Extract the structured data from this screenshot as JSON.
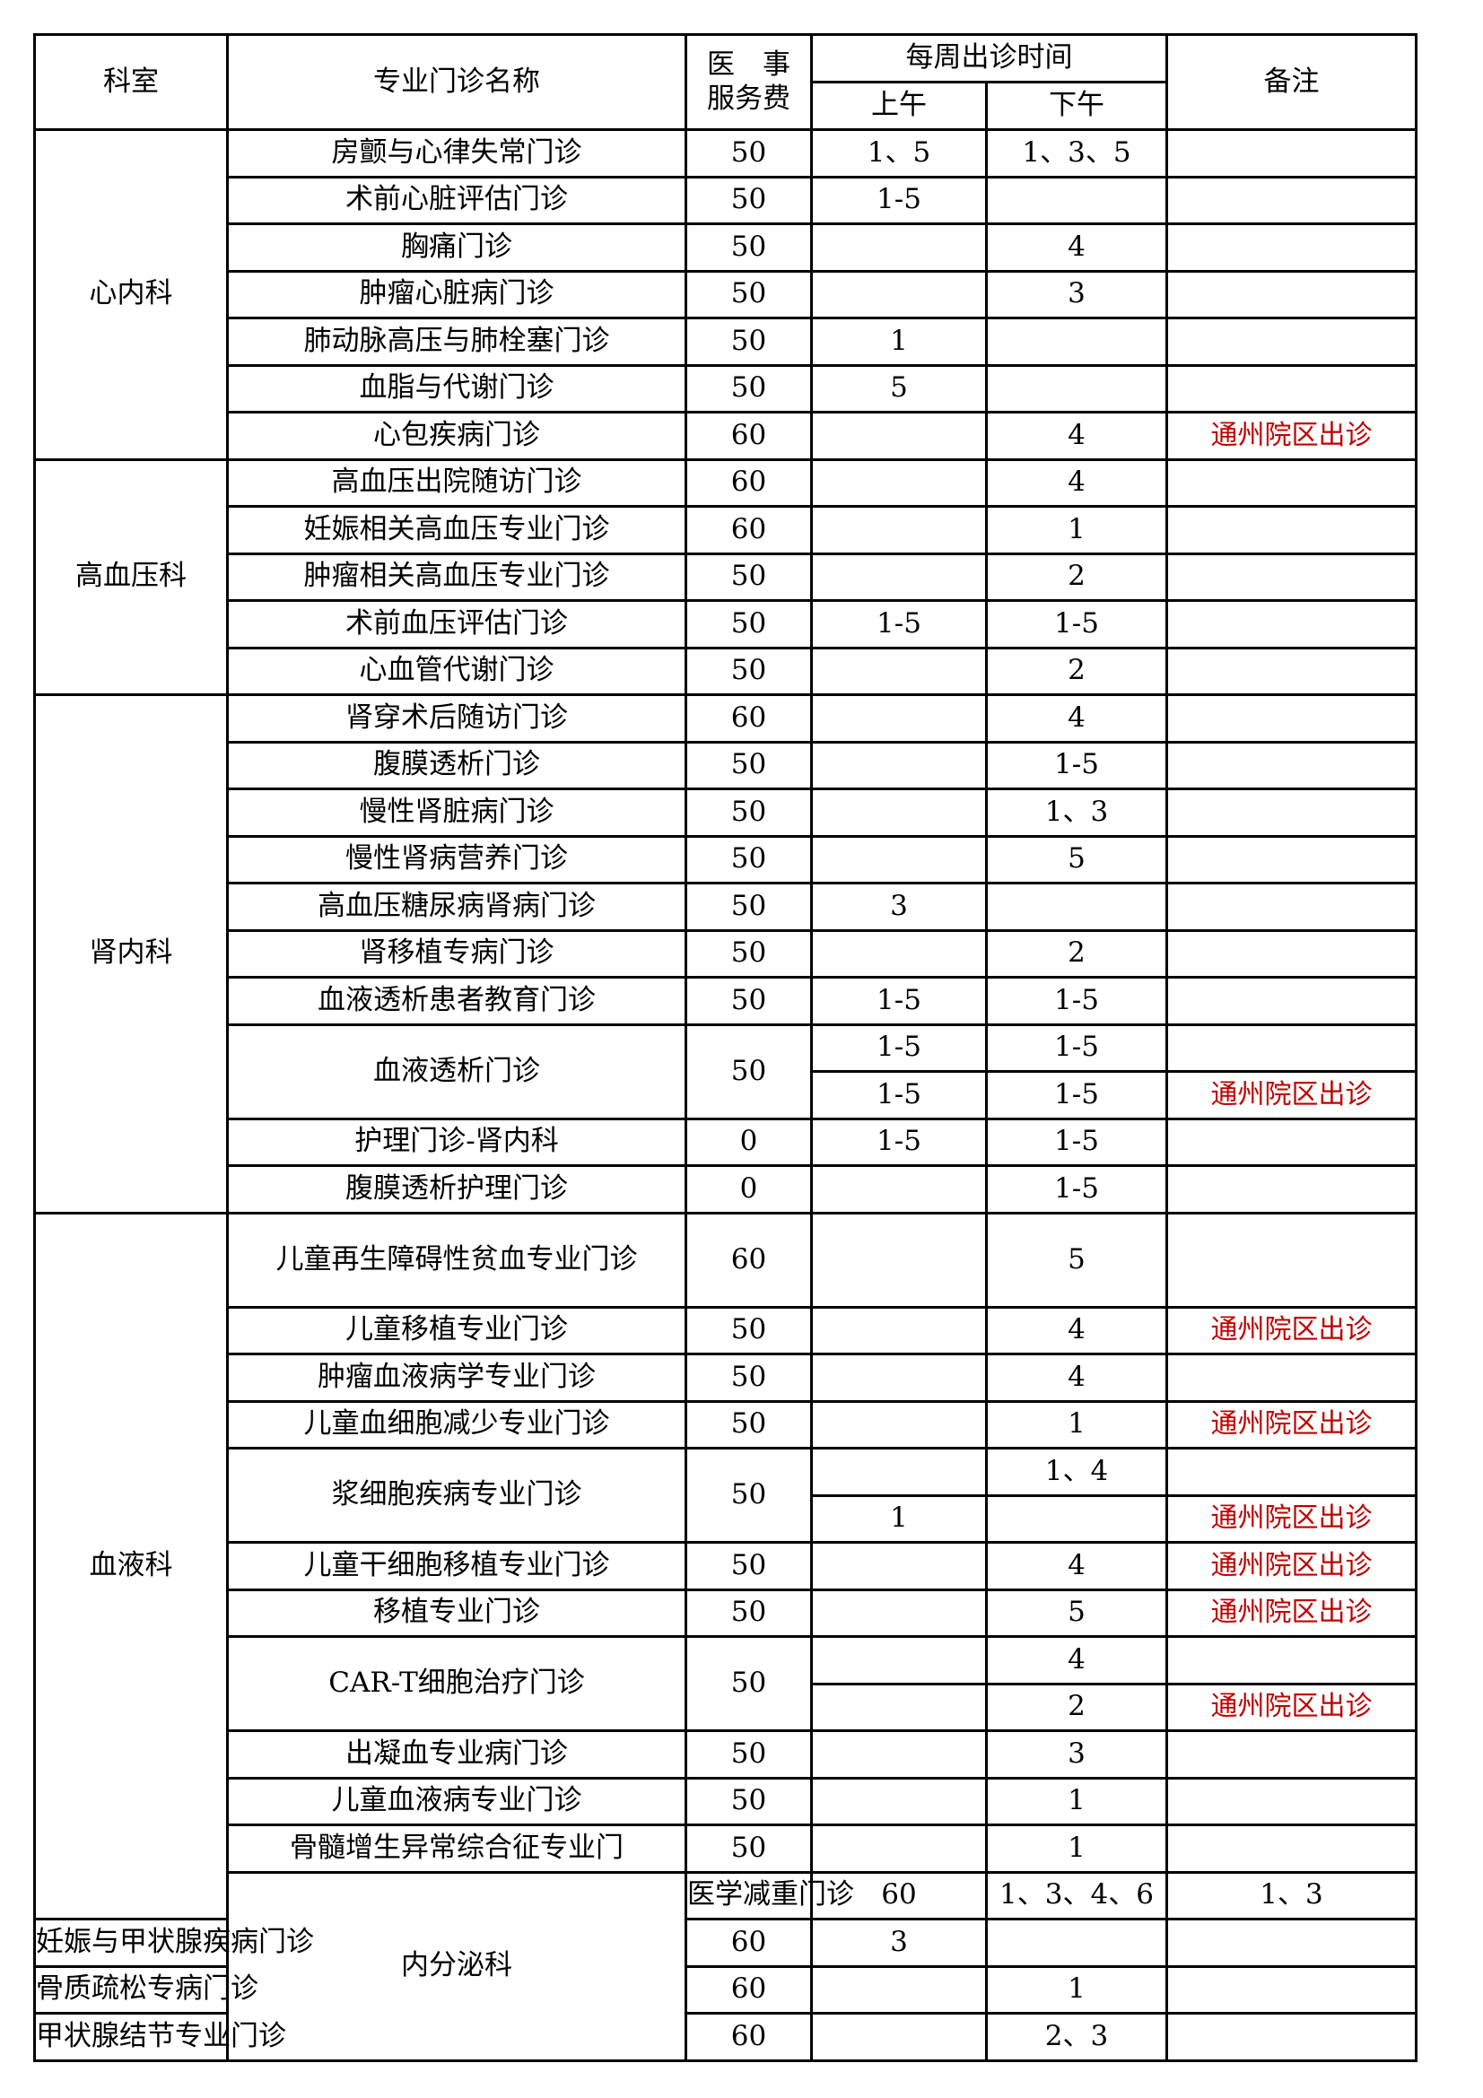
{
  "header": {
    "department": "科室",
    "clinic_name": "专业门诊名称",
    "fee_line1": "医　事",
    "fee_line2": "服务费",
    "weekly_time": "每周出诊时间",
    "am": "上午",
    "pm": "下午",
    "remarks": "备注"
  },
  "colors": {
    "note": "#c00000",
    "border": "#000000"
  },
  "departments": [
    {
      "name": "心内科",
      "clinics": [
        {
          "name": "房颤与心律失常门诊",
          "fee": "50",
          "slots": [
            {
              "am": "1、5",
              "pm": "1、3、5",
              "note": ""
            }
          ]
        },
        {
          "name": "术前心脏评估门诊",
          "fee": "50",
          "slots": [
            {
              "am": "1-5",
              "pm": "",
              "note": ""
            }
          ]
        },
        {
          "name": "胸痛门诊",
          "fee": "50",
          "slots": [
            {
              "am": "",
              "pm": "4",
              "note": ""
            }
          ]
        },
        {
          "name": "肿瘤心脏病门诊",
          "fee": "50",
          "slots": [
            {
              "am": "",
              "pm": "3",
              "note": ""
            }
          ]
        },
        {
          "name": "肺动脉高压与肺栓塞门诊",
          "fee": "50",
          "slots": [
            {
              "am": "1",
              "pm": "",
              "note": ""
            }
          ]
        },
        {
          "name": "血脂与代谢门诊",
          "fee": "50",
          "slots": [
            {
              "am": "5",
              "pm": "",
              "note": ""
            }
          ]
        },
        {
          "name": "心包疾病门诊",
          "fee": "60",
          "slots": [
            {
              "am": "",
              "pm": "4",
              "note": "通州院区出诊"
            }
          ]
        }
      ]
    },
    {
      "name": "高血压科",
      "clinics": [
        {
          "name": "高血压出院随访门诊",
          "fee": "60",
          "slots": [
            {
              "am": "",
              "pm": "4",
              "note": ""
            }
          ]
        },
        {
          "name": "妊娠相关高血压专业门诊",
          "fee": "60",
          "slots": [
            {
              "am": "",
              "pm": "1",
              "note": ""
            }
          ]
        },
        {
          "name": "肿瘤相关高血压专业门诊",
          "fee": "50",
          "slots": [
            {
              "am": "",
              "pm": "2",
              "note": ""
            }
          ]
        },
        {
          "name": "术前血压评估门诊",
          "fee": "50",
          "slots": [
            {
              "am": "1-5",
              "pm": "1-5",
              "note": ""
            }
          ]
        },
        {
          "name": "心血管代谢门诊",
          "fee": "50",
          "slots": [
            {
              "am": "",
              "pm": "2",
              "note": ""
            }
          ]
        }
      ]
    },
    {
      "name": "肾内科",
      "clinics": [
        {
          "name": "肾穿术后随访门诊",
          "fee": "60",
          "slots": [
            {
              "am": "",
              "pm": "4",
              "note": ""
            }
          ]
        },
        {
          "name": "腹膜透析门诊",
          "fee": "50",
          "slots": [
            {
              "am": "",
              "pm": "1-5",
              "note": ""
            }
          ]
        },
        {
          "name": "慢性肾脏病门诊",
          "fee": "50",
          "slots": [
            {
              "am": "",
              "pm": "1、3",
              "note": ""
            }
          ]
        },
        {
          "name": "慢性肾病营养门诊",
          "fee": "50",
          "slots": [
            {
              "am": "",
              "pm": "5",
              "note": ""
            }
          ]
        },
        {
          "name": "高血压糖尿病肾病门诊",
          "fee": "50",
          "slots": [
            {
              "am": "3",
              "pm": "",
              "note": ""
            }
          ]
        },
        {
          "name": "肾移植专病门诊",
          "fee": "50",
          "slots": [
            {
              "am": "",
              "pm": "2",
              "note": ""
            }
          ]
        },
        {
          "name": "血液透析患者教育门诊",
          "fee": "50",
          "slots": [
            {
              "am": "1-5",
              "pm": "1-5",
              "note": ""
            }
          ]
        },
        {
          "name": "血液透析门诊",
          "fee": "50",
          "slots": [
            {
              "am": "1-5",
              "pm": "1-5",
              "note": ""
            },
            {
              "am": "1-5",
              "pm": "1-5",
              "note": "通州院区出诊"
            }
          ]
        },
        {
          "name": "护理门诊-肾内科",
          "fee": "0",
          "slots": [
            {
              "am": "1-5",
              "pm": "1-5",
              "note": ""
            }
          ]
        },
        {
          "name": "腹膜透析护理门诊",
          "fee": "0",
          "slots": [
            {
              "am": "",
              "pm": "1-5",
              "note": ""
            }
          ]
        }
      ]
    },
    {
      "name": "血液科",
      "clinics": [
        {
          "name": "儿童再生障碍性贫血专业门诊",
          "fee": "60",
          "tall": true,
          "slots": [
            {
              "am": "",
              "pm": "5",
              "note": ""
            }
          ]
        },
        {
          "name": "儿童移植专业门诊",
          "fee": "50",
          "slots": [
            {
              "am": "",
              "pm": "4",
              "note": "通州院区出诊"
            }
          ]
        },
        {
          "name": "肿瘤血液病学专业门诊",
          "fee": "50",
          "slots": [
            {
              "am": "",
              "pm": "4",
              "note": ""
            }
          ]
        },
        {
          "name": "儿童血细胞减少专业门诊",
          "fee": "50",
          "slots": [
            {
              "am": "",
              "pm": "1",
              "note": "通州院区出诊"
            }
          ]
        },
        {
          "name": "浆细胞疾病专业门诊",
          "fee": "50",
          "slots": [
            {
              "am": "",
              "pm": "1、4",
              "note": ""
            },
            {
              "am": "1",
              "pm": "",
              "note": "通州院区出诊"
            }
          ]
        },
        {
          "name": "儿童干细胞移植专业门诊",
          "fee": "50",
          "slots": [
            {
              "am": "",
              "pm": "4",
              "note": "通州院区出诊"
            }
          ]
        },
        {
          "name": "移植专业门诊",
          "fee": "50",
          "slots": [
            {
              "am": "",
              "pm": "5",
              "note": "通州院区出诊"
            }
          ]
        },
        {
          "name": "CAR-T细胞治疗门诊",
          "fee": "50",
          "slots": [
            {
              "am": "",
              "pm": "4",
              "note": ""
            },
            {
              "am": "",
              "pm": "2",
              "note": "通州院区出诊"
            }
          ]
        },
        {
          "name": "出凝血专业病门诊",
          "fee": "50",
          "slots": [
            {
              "am": "",
              "pm": "3",
              "note": ""
            }
          ]
        },
        {
          "name": "儿童血液病专业门诊",
          "fee": "50",
          "slots": [
            {
              "am": "",
              "pm": "1",
              "note": ""
            }
          ]
        },
        {
          "name": "骨髓增生异常综合征专业门",
          "fee": "50",
          "slots": [
            {
              "am": "",
              "pm": "1",
              "note": ""
            }
          ]
        }
      ]
    },
    {
      "name": "内分泌科",
      "clinics": [
        {
          "name": "医学减重门诊",
          "fee": "60",
          "slots": [
            {
              "am": "1、3、4、6",
              "pm": "1、3",
              "note": ""
            }
          ]
        },
        {
          "name": "妊娠与甲状腺疾病门诊",
          "fee": "60",
          "slots": [
            {
              "am": "3",
              "pm": "",
              "note": ""
            }
          ]
        },
        {
          "name": "骨质疏松专病门诊",
          "fee": "60",
          "slots": [
            {
              "am": "",
              "pm": "1",
              "note": ""
            }
          ]
        },
        {
          "name": "甲状腺结节专业门诊",
          "fee": "60",
          "slots": [
            {
              "am": "",
              "pm": "2、3",
              "note": ""
            }
          ]
        }
      ]
    }
  ]
}
